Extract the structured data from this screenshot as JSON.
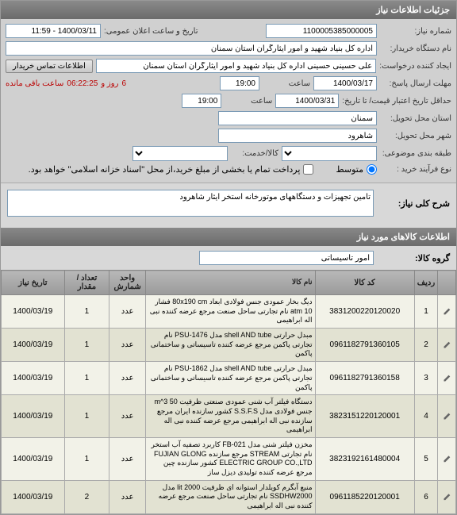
{
  "panel": {
    "title": "جزئیات اطلاعات نیاز"
  },
  "form": {
    "needNo": {
      "label": "شماره نیاز:",
      "value": "1100005385000005"
    },
    "publicAnnounce": {
      "label": "تاریخ و ساعت اعلان عمومی:",
      "value": "1400/03/11 - 11:59"
    },
    "buyerDevice": {
      "label": "نام دستگاه خریدار:",
      "value": "اداره کل بنیاد شهید و امور ایثارگران استان سمنان"
    },
    "creator": {
      "label": "ایجاد کننده درخواست:",
      "value": "علی حسینی حسینی اداره کل بنیاد شهید و امور ایثارگران استان سمنان"
    },
    "contactBtn": "اطلاعات تماس خریدار",
    "deadlineSend": {
      "label": "مهلت ارسال پاسخ:",
      "date": "1400/03/17",
      "timeLabel": "ساعت",
      "time": "19:00"
    },
    "countdown": {
      "days": "6",
      "daysLabel": "روز و",
      "time": "06:22:25",
      "suffix": "ساعت باقی مانده"
    },
    "deadlineValid": {
      "label": "حداقل تاریخ اعتبار قیمت/ تا تاریخ:",
      "date": "1400/03/31",
      "timeLabel": "ساعت",
      "time": "19:00"
    },
    "deliveryProvince": {
      "label": "استان محل تحویل:",
      "value": "سمنان"
    },
    "deliveryCity": {
      "label": "شهر محل تحویل:",
      "value": "شاهرود"
    },
    "categoryType": {
      "label": "طبقه بندی موضوعی:",
      "value": ""
    },
    "itemService": {
      "label": "کالا/خدمت:",
      "value": ""
    },
    "purchaseType": {
      "label": "نوع فرآیند خرید :",
      "optMid": "متوسط",
      "optPartial": "پرداخت تمام یا بخشی از مبلغ خرید،از محل \"اسناد خزانه اسلامی\" خواهد بود."
    }
  },
  "desc": {
    "mainLabel": "شرح کلی نیاز:",
    "mainValue": "تامین تجهیزات و دستگاههای موتورخانه استخر ایثار شاهرود"
  },
  "items": {
    "headerTitle": "اطلاعات کالاهای مورد نیاز",
    "groupLabel": "گروه کالا:",
    "groupValue": "امور تاسیساتی",
    "columns": {
      "edit": "",
      "idx": "ردیف",
      "code": "کد کالا",
      "name": "نام کالا",
      "unit": "واحد شمارش",
      "qty": "تعداد / مقدار",
      "date": "تاریخ نیاز"
    },
    "rows": [
      {
        "idx": "1",
        "code": "3831200220120020",
        "name": "دیگ بخار عمودی جنس فولادی ابعاد 80x190 cm فشار 10 atm نام تجارتی ساحل صنعت مرجع عرضه کننده نبی اله ابراهیمی",
        "unit": "عدد",
        "qty": "1",
        "date": "1400/03/19"
      },
      {
        "idx": "2",
        "code": "0961182791360105",
        "name": "مبدل حرارتی shell AND tube مدل PSU-1476 نام تجارتی پاکمن مرجع عرضه کننده تاسیساتی و ساختمانی پاکمن",
        "unit": "عدد",
        "qty": "1",
        "date": "1400/03/19"
      },
      {
        "idx": "3",
        "code": "0961182791360158",
        "name": "مبدل حرارتی shell AND tube مدل PSU-1862 نام تجارتی پاکمن مرجع عرضه کننده تاسیساتی و ساختمانی پاکمن",
        "unit": "عدد",
        "qty": "1",
        "date": "1400/03/19"
      },
      {
        "idx": "4",
        "code": "3823151220120001",
        "name": "دستگاه فیلتر آب شنی عمودی صنعتی ظرفیت 50 m^3 جنس فولادی مدل S.S.F.S کشور سازنده ایران مرجع سازنده نبی اله ابراهیمی مرجع عرضه کننده نبی اله ابراهیمی",
        "unit": "عدد",
        "qty": "1",
        "date": "1400/03/19"
      },
      {
        "idx": "5",
        "code": "3823192161480004",
        "name": "مخزن فیلتر شنی مدل FB-021 کاربرد تصفیه آب استخر نام تجارتی STREAM مرجع سازنده FUJIAN GLONG ELECTRIC GROUP CO.,LTD کشور سازنده چین مرجع عرضه کننده تولیدی دیزل ساز",
        "unit": "عدد",
        "qty": "1",
        "date": "1400/03/19"
      },
      {
        "idx": "6",
        "code": "0961185220120001",
        "name": "منبع آبگرم کویلدار استوانه ای ظرفیت 2000 lit مدل SSDHW2000 نام تجارتی ساحل صنعت مرجع عرضه کننده نبی اله ابراهیمی",
        "unit": "عدد",
        "qty": "2",
        "date": "1400/03/19"
      }
    ]
  }
}
